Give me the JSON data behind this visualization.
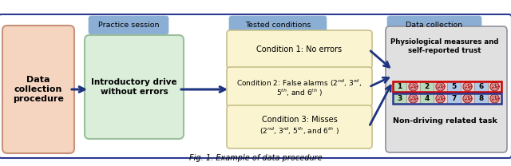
{
  "bg": "#ffffff",
  "outer_ec": "#2b3990",
  "hdr_fc": "#8baed4",
  "sal_fc": "#f5d5c0",
  "sal_ec": "#c8927a",
  "grn_fc": "#daeeda",
  "grn_ec": "#9abf9a",
  "yel_fc": "#faf5d0",
  "yel_ec": "#c8c08a",
  "gry_fc": "#e0e0e0",
  "gry_ec": "#9090a0",
  "arr": "#1f3480",
  "cg": "#b8dab8",
  "cb": "#b0c8e8",
  "cwh": "#e8d0d0",
  "rb": "#cc0000",
  "bb": "#2b3990",
  "wc": "#aa2222",
  "caption": "Fig. 1. Example of data procedure",
  "hdr_texts": [
    "Practice session",
    "Tested conditions",
    "Data collection"
  ],
  "left_text": "Data\ncollection\nprocedure",
  "practice_text": "Introductory drive\nwithout errors",
  "cond1": "Condition 1: No errors",
  "cond2_1": "Condition 2: False alarms (2",
  "cond2_2": ", 3",
  "cond2_3": ",",
  "cond2_4": "5",
  "cond2_5": ", and 6",
  "cond2_end": " )",
  "cond3_1": "Condition 3: Misses",
  "cond3_2": "(2",
  "cond3_3": ", 3",
  "cond3_4": ", 5",
  "cond3_5": ", and 6",
  "cond3_end": " )",
  "phys_text": "Physiological measures and\nself-reported trust",
  "non_driving_text": "Non-driving related task",
  "grid_row1": [
    1,
    2,
    5,
    6
  ],
  "grid_row2": [
    3,
    4,
    7,
    8
  ],
  "green_nums": [
    1,
    2,
    3,
    4
  ],
  "blue_nums": [
    5,
    6,
    7,
    8
  ]
}
